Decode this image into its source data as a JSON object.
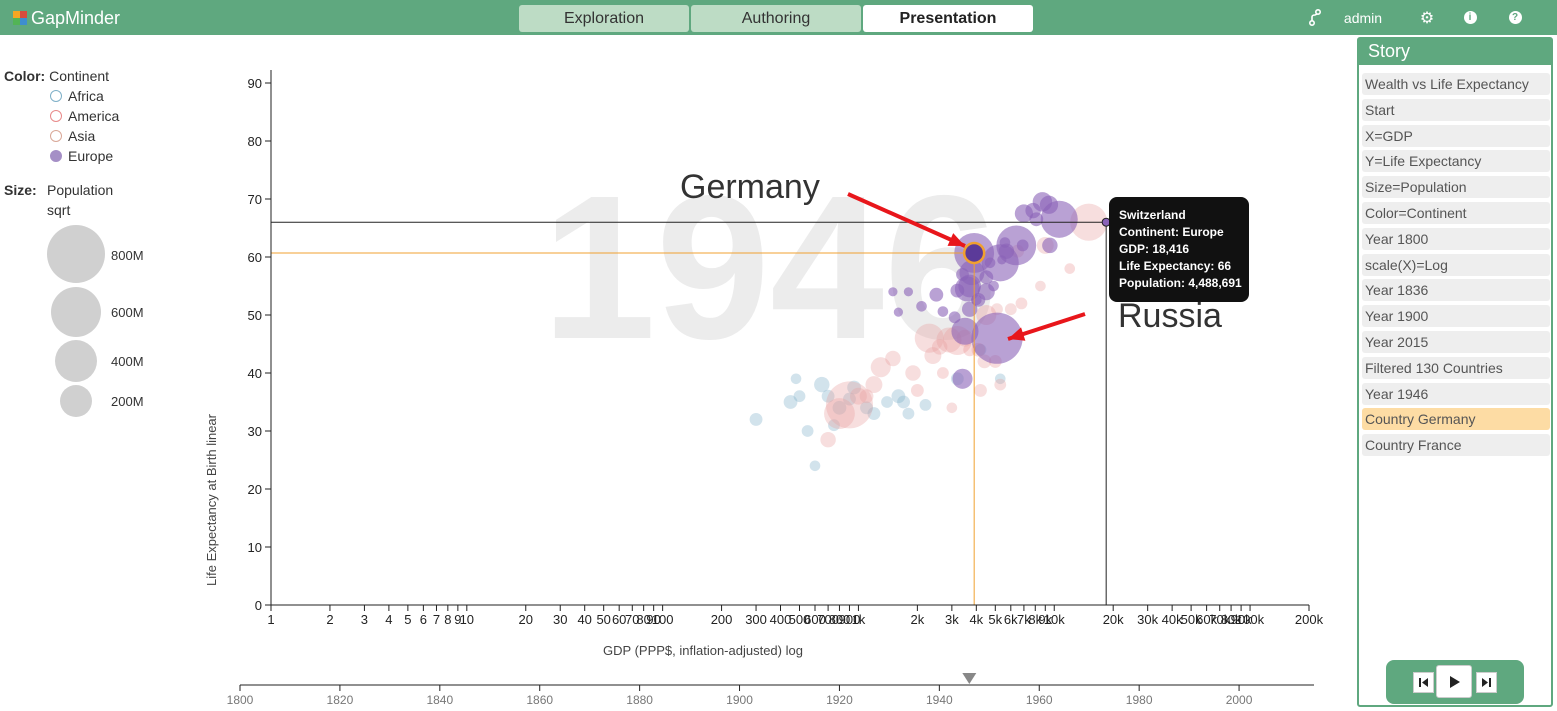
{
  "app": {
    "name": "GapMinder"
  },
  "nav": {
    "tabs": [
      {
        "label": "Exploration",
        "active": false
      },
      {
        "label": "Authoring",
        "active": false
      },
      {
        "label": "Presentation",
        "active": true
      }
    ],
    "user": "admin",
    "icons": [
      "fork-icon",
      "gear-icon",
      "info-icon",
      "help-icon"
    ]
  },
  "legend": {
    "color_label": "Color:",
    "color_value": "Continent",
    "items": [
      {
        "label": "Africa",
        "color": "#7fb0c8"
      },
      {
        "label": "America",
        "color": "#e88a8a"
      },
      {
        "label": "Asia",
        "color": "#d9a898"
      },
      {
        "label": "Europe",
        "color": "#a58fc6"
      }
    ],
    "size_label": "Size:",
    "size_value": "Population",
    "size_scale": "sqrt",
    "size_items": [
      {
        "label": "800M",
        "population": 800000000
      },
      {
        "label": "600M",
        "population": 600000000
      },
      {
        "label": "400M",
        "population": 400000000
      },
      {
        "label": "200M",
        "population": 200000000
      }
    ]
  },
  "story": {
    "title": "Story",
    "items": [
      {
        "label": "Wealth vs Life Expectancy",
        "selected": false
      },
      {
        "label": "Start",
        "selected": false
      },
      {
        "label": "X=GDP",
        "selected": false
      },
      {
        "label": "Y=Life Expectancy",
        "selected": false
      },
      {
        "label": "Size=Population",
        "selected": false
      },
      {
        "label": "Color=Continent",
        "selected": false
      },
      {
        "label": "Year 1800",
        "selected": false
      },
      {
        "label": "scale(X)=Log",
        "selected": false
      },
      {
        "label": "Year 1836",
        "selected": false
      },
      {
        "label": "Year 1900",
        "selected": false
      },
      {
        "label": "Year 2015",
        "selected": false
      },
      {
        "label": "Filtered 130 Countries",
        "selected": false
      },
      {
        "label": "Year 1946",
        "selected": false
      },
      {
        "label": "Country Germany",
        "selected": true
      },
      {
        "label": "Country France",
        "selected": false
      }
    ],
    "player_icons": [
      "step-back-icon",
      "play-icon",
      "step-forward-icon"
    ]
  },
  "chart_data": {
    "type": "scatter",
    "year_watermark": "1946",
    "xlabel": "GDP (PPP$, inflation-adjusted) log",
    "ylabel": "Life Expectancy at Birth linear",
    "x_scale": "log",
    "xlim": [
      1,
      200000
    ],
    "ylim": [
      0,
      92
    ],
    "x_ticks": [
      1,
      2,
      3,
      4,
      5,
      6,
      7,
      8,
      9,
      10,
      20,
      30,
      40,
      50,
      60,
      70,
      80,
      90,
      100,
      200,
      300,
      400,
      500,
      600,
      700,
      800,
      900,
      1000,
      2000,
      3000,
      4000,
      5000,
      6000,
      7000,
      8000,
      9000,
      10000,
      20000,
      30000,
      40000,
      50000,
      60000,
      70000,
      80000,
      90000,
      100000,
      200000
    ],
    "x_tick_labels": [
      "1",
      "2",
      "3",
      "4",
      "5",
      "6",
      "7",
      "8",
      "9",
      "10",
      "20",
      "30",
      "40",
      "50",
      "60",
      "70",
      "80",
      "90",
      "100",
      "200",
      "300",
      "400",
      "500",
      "600",
      "700",
      "800",
      "900",
      "1k",
      "2k",
      "3k",
      "4k",
      "5k",
      "6k",
      "7k",
      "8k",
      "9k",
      "10k",
      "20k",
      "30k",
      "40k",
      "50k",
      "60k",
      "70k",
      "80k",
      "90k",
      "100k",
      "200k"
    ],
    "y_ticks": [
      0,
      10,
      20,
      30,
      40,
      50,
      60,
      70,
      80,
      90
    ],
    "annotations": [
      {
        "label": "Germany",
        "point": [
          3900,
          60.7
        ]
      },
      {
        "label": "Russia",
        "point": [
          5100,
          46
        ]
      }
    ],
    "highlight": {
      "name": "Germany",
      "gdp": 3900,
      "life": 60.7
    },
    "tooltip": {
      "name": "Switzerland",
      "lines": [
        "Continent: Europe",
        "GDP: 18,416",
        "Life Expectancy: 66",
        "Population: 4,488,691"
      ],
      "gdp": 18416,
      "life": 66
    },
    "series": [
      {
        "name": "Europe",
        "color": "#8a62b8",
        "opacity": 0.6,
        "points": [
          [
            3900,
            60.7,
            70
          ],
          [
            5100,
            46,
            120
          ],
          [
            5300,
            59,
            60
          ],
          [
            6400,
            62,
            70
          ],
          [
            10600,
            66.5,
            60
          ],
          [
            8700,
            69.5,
            14
          ],
          [
            7800,
            68,
            8
          ],
          [
            7000,
            67.5,
            12
          ],
          [
            9400,
            69,
            12
          ],
          [
            5700,
            61,
            8
          ],
          [
            8100,
            66.5,
            6
          ],
          [
            6900,
            62,
            4
          ],
          [
            3400,
            57,
            5
          ],
          [
            3800,
            57.3,
            25
          ],
          [
            4500,
            56.5,
            6
          ],
          [
            3600,
            54.5,
            25
          ],
          [
            3700,
            55,
            20
          ],
          [
            3700,
            51,
            8
          ],
          [
            3500,
            47.2,
            30
          ],
          [
            3400,
            39,
            15
          ],
          [
            4500,
            54,
            10
          ],
          [
            4100,
            52.6,
            6
          ],
          [
            3200,
            54.2,
            6
          ],
          [
            2500,
            53.5,
            6
          ],
          [
            2100,
            51.5,
            3
          ],
          [
            1800,
            54,
            2
          ],
          [
            1500,
            54,
            2
          ],
          [
            1600,
            50.5,
            2
          ],
          [
            2700,
            50.6,
            3
          ],
          [
            3100,
            49.6,
            4
          ],
          [
            5600,
            62.5,
            3
          ],
          [
            4700,
            59,
            3
          ],
          [
            9500,
            62,
            8
          ],
          [
            5400,
            59.5,
            2
          ],
          [
            4900,
            55,
            3
          ],
          [
            4000,
            52.6,
            3
          ]
        ]
      },
      {
        "name": "Asia",
        "color": "#e8a0a0",
        "opacity": 0.35,
        "points": [
          [
            15000,
            66,
            60
          ],
          [
            9000,
            62,
            10
          ],
          [
            6500,
            61,
            5
          ],
          [
            2400,
            43,
            10
          ],
          [
            2300,
            46,
            35
          ],
          [
            2900,
            45.7,
            25
          ],
          [
            2600,
            44.5,
            8
          ],
          [
            1300,
            41,
            15
          ],
          [
            1200,
            38,
            10
          ],
          [
            1000,
            36,
            10
          ],
          [
            900,
            34.5,
            100
          ],
          [
            800,
            33,
            40
          ],
          [
            700,
            28.5,
            8
          ],
          [
            1100,
            36,
            6
          ],
          [
            1500,
            42.5,
            8
          ],
          [
            1900,
            40,
            8
          ],
          [
            3500,
            46,
            10
          ],
          [
            4400,
            42,
            6
          ],
          [
            6000,
            51,
            4
          ],
          [
            8500,
            55,
            3
          ],
          [
            4200,
            37,
            5
          ],
          [
            5300,
            38,
            4
          ],
          [
            3000,
            34,
            3
          ],
          [
            5100,
            51,
            4
          ]
        ]
      },
      {
        "name": "America",
        "color": "#e88a8a",
        "opacity": 0.3,
        "points": [
          [
            3200,
            45.6,
            35
          ],
          [
            4500,
            50,
            15
          ],
          [
            6800,
            52,
            4
          ],
          [
            12000,
            58,
            3
          ],
          [
            3700,
            44,
            5
          ],
          [
            2700,
            40,
            4
          ],
          [
            4100,
            44,
            6
          ],
          [
            2000,
            37,
            5
          ],
          [
            5000,
            42,
            5
          ]
        ]
      },
      {
        "name": "Africa",
        "color": "#7fb0c8",
        "opacity": 0.35,
        "points": [
          [
            300,
            32,
            5
          ],
          [
            450,
            35,
            6
          ],
          [
            500,
            36,
            4
          ],
          [
            550,
            30,
            4
          ],
          [
            650,
            38,
            8
          ],
          [
            700,
            36,
            5
          ],
          [
            750,
            31,
            4
          ],
          [
            800,
            34,
            6
          ],
          [
            900,
            35.5,
            5
          ],
          [
            1100,
            34,
            5
          ],
          [
            1200,
            33,
            5
          ],
          [
            1400,
            35,
            4
          ],
          [
            1600,
            36,
            6
          ],
          [
            1800,
            33,
            4
          ],
          [
            2200,
            34.5,
            4
          ],
          [
            3200,
            39,
            5
          ],
          [
            4200,
            44,
            4
          ],
          [
            5300,
            39,
            3
          ],
          [
            1700,
            35,
            5
          ],
          [
            950,
            37.5,
            6
          ],
          [
            600,
            24,
            3
          ],
          [
            480,
            39,
            3
          ]
        ]
      }
    ]
  },
  "timeline": {
    "ticks": [
      1800,
      1820,
      1840,
      1860,
      1880,
      1900,
      1920,
      1940,
      1960,
      1980,
      2000
    ],
    "range": [
      1800,
      2015
    ],
    "current_year": 1946
  }
}
